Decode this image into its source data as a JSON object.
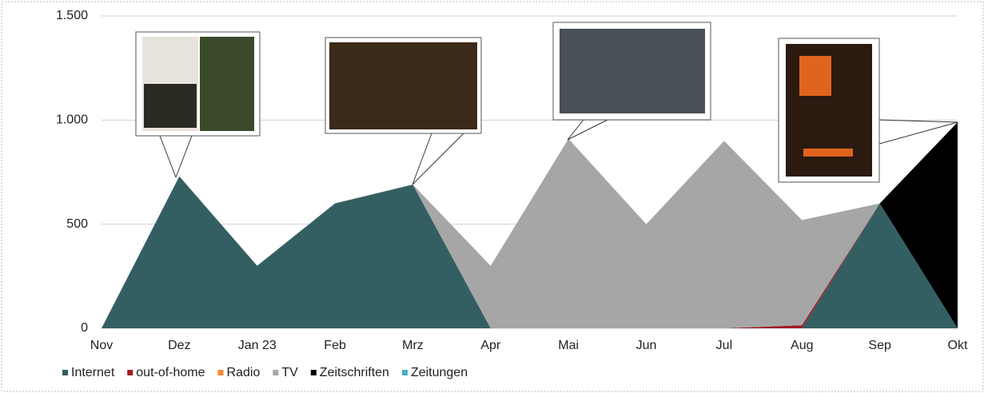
{
  "chart_data": {
    "type": "stacked-area",
    "categories": [
      "Nov",
      "Dez",
      "Jan 23",
      "Feb",
      "Mrz",
      "Apr",
      "Mai",
      "Jun",
      "Jul",
      "Aug",
      "Sep",
      "Okt"
    ],
    "series": [
      {
        "name": "Internet",
        "color": "#335f63",
        "values": [
          0,
          730,
          300,
          600,
          690,
          0,
          0,
          0,
          0,
          0,
          600,
          0
        ]
      },
      {
        "name": "out-of-home",
        "color": "#a01c24",
        "values": [
          0,
          0,
          0,
          0,
          0,
          0,
          0,
          0,
          0,
          15,
          0,
          0
        ]
      },
      {
        "name": "Radio",
        "color": "#f28a30",
        "values": [
          0,
          0,
          0,
          0,
          0,
          0,
          0,
          0,
          0,
          0,
          0,
          0
        ]
      },
      {
        "name": "TV",
        "color": "#a6a6a6",
        "values": [
          0,
          0,
          0,
          0,
          0,
          300,
          910,
          500,
          900,
          505,
          0,
          0
        ]
      },
      {
        "name": "Zeitschriften",
        "color": "#000000",
        "values": [
          0,
          0,
          0,
          0,
          0,
          0,
          0,
          0,
          0,
          0,
          0,
          990
        ]
      },
      {
        "name": "Zeitungen",
        "color": "#4bacc6",
        "values": [
          0,
          0,
          0,
          0,
          0,
          0,
          0,
          0,
          0,
          0,
          0,
          0
        ]
      }
    ],
    "ylim": [
      0,
      1500
    ],
    "yticks": [
      0,
      500,
      {
        "value": 1000,
        "label": "1.000"
      },
      {
        "value": 1500,
        "label": "1.500"
      }
    ],
    "grid": true,
    "legend": "bottom"
  }
}
